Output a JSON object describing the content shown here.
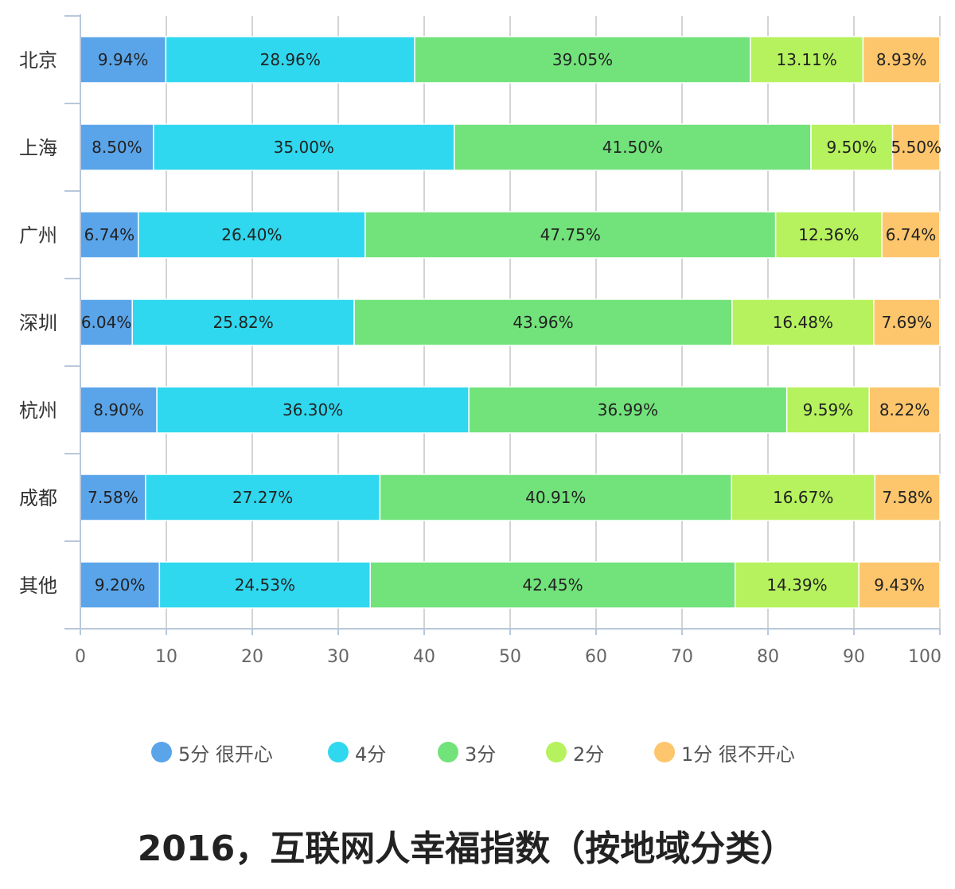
{
  "chart_data": {
    "type": "bar",
    "orientation": "horizontal",
    "stacked": true,
    "title": "2016，互联网人幸福指数（按地域分类）",
    "categories": [
      "北京",
      "上海",
      "广州",
      "深圳",
      "杭州",
      "成都",
      "其他"
    ],
    "series": [
      {
        "name": "5分 很开心",
        "color": "#5aa5ea",
        "values": [
          9.94,
          8.5,
          6.74,
          6.04,
          8.9,
          7.58,
          9.2
        ],
        "labels": [
          "9.94%",
          "8.50%",
          "6.74%",
          "6.04%",
          "8.90%",
          "7.58%",
          "9.20%"
        ]
      },
      {
        "name": "4分",
        "color": "#2fd8ee",
        "values": [
          28.96,
          35.0,
          26.4,
          25.82,
          36.3,
          27.27,
          24.53
        ],
        "labels": [
          "28.96%",
          "35.00%",
          "26.40%",
          "25.82%",
          "36.30%",
          "27.27%",
          "24.53%"
        ]
      },
      {
        "name": "3分",
        "color": "#72e27b",
        "values": [
          39.05,
          41.5,
          47.75,
          43.96,
          36.99,
          40.91,
          42.45
        ],
        "labels": [
          "39.05%",
          "41.50%",
          "47.75%",
          "43.96%",
          "36.99%",
          "40.91%",
          "42.45%"
        ]
      },
      {
        "name": "2分",
        "color": "#b6f25d",
        "values": [
          13.11,
          9.5,
          12.36,
          16.48,
          9.59,
          16.67,
          14.39
        ],
        "labels": [
          "13.11%",
          "9.50%",
          "12.36%",
          "16.48%",
          "9.59%",
          "16.67%",
          "14.39%"
        ]
      },
      {
        "name": "1分 很不开心",
        "color": "#fdc66c",
        "values": [
          8.93,
          5.5,
          6.74,
          7.69,
          8.22,
          7.58,
          9.43
        ],
        "labels": [
          "8.93%",
          "5.50%",
          "6.74%",
          "7.69%",
          "8.22%",
          "7.58%",
          "9.43%"
        ]
      }
    ],
    "xlim": [
      0,
      100
    ],
    "xticks": [
      "0",
      "10",
      "20",
      "30",
      "40",
      "50",
      "60",
      "70",
      "80",
      "90",
      "100"
    ],
    "grid": true,
    "legend_position": "bottom"
  }
}
